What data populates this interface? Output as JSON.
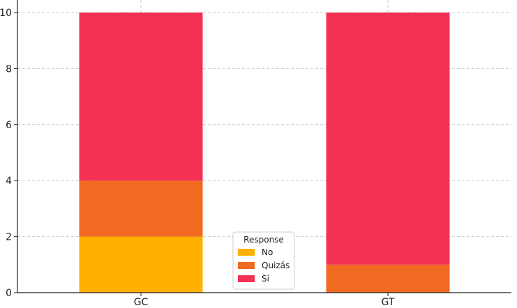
{
  "chart_data": {
    "type": "bar",
    "stacked": true,
    "categories": [
      "GC",
      "GT"
    ],
    "series": [
      {
        "name": "No",
        "values": [
          2,
          0
        ],
        "color": "#FFB000"
      },
      {
        "name": "Quizás",
        "values": [
          2,
          1
        ],
        "color": "#F06A22"
      },
      {
        "name": "Sí",
        "values": [
          6,
          9
        ],
        "color": "#F43155"
      }
    ],
    "ylim": [
      0,
      10
    ],
    "yticks": [
      "0",
      "2",
      "4",
      "6",
      "8",
      "10"
    ],
    "grid": true,
    "legend": {
      "title": "Response",
      "position": "bottom-center"
    }
  }
}
